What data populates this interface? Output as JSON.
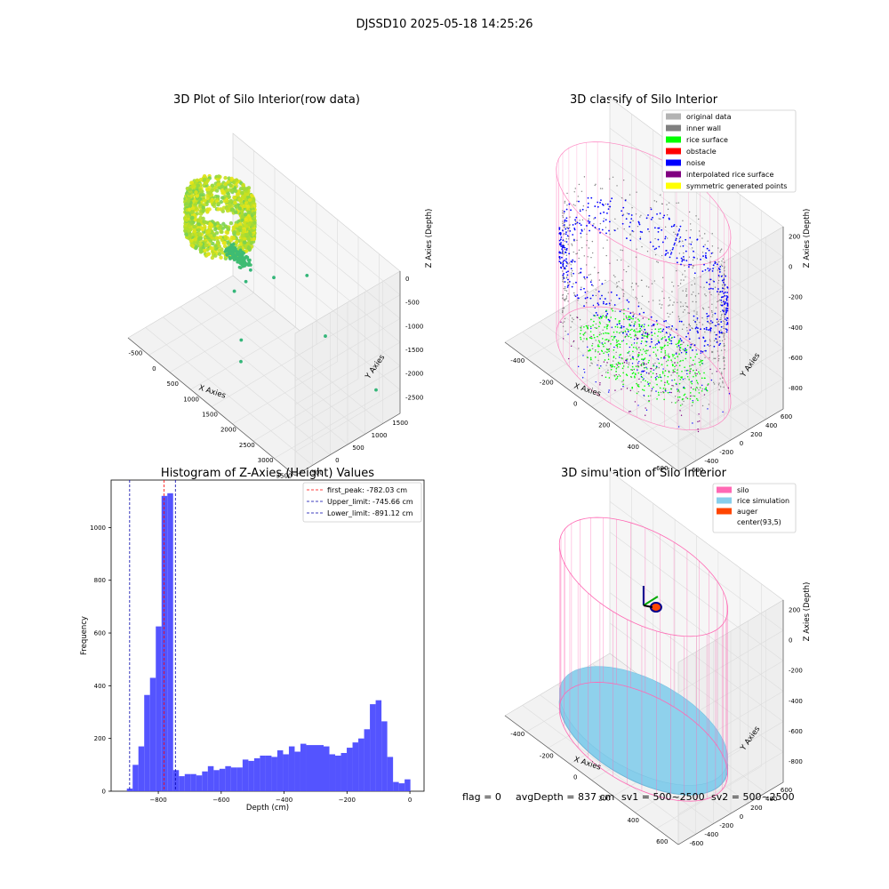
{
  "suptitle": "DJSSD10 2025-05-18 14:25:26",
  "footer": {
    "flag": "flag = 0",
    "avg": "avgDepth = 837 cm",
    "sv1": "sv1 = 500~2500",
    "sv2": "sv2 = 500~2500"
  },
  "colors": {
    "hist_bar": "#4b4bff",
    "first_peak": "#ff0000",
    "limits": "#0000aa",
    "pane": "#f2f2f2",
    "grid": "#dddddd"
  },
  "chart_data": [
    {
      "type": "scatter",
      "projection": "3d",
      "title": "3D Plot of Silo Interior(row data)",
      "xlabel": "X Axies",
      "ylabel": "Y Axies",
      "zlabel": "Z Axies (Depth)",
      "x_ticks": [
        "-500",
        "0",
        "500",
        "1000",
        "1500",
        "2000",
        "2500",
        "3000",
        "3500"
      ],
      "y_ticks": [
        "-500",
        "0",
        "500",
        "1000",
        "1500"
      ],
      "z_ticks": [
        "0",
        "-500",
        "-1000",
        "-1500",
        "-2000",
        "-2500"
      ],
      "xlim": [
        -700,
        3600
      ],
      "ylim": [
        -700,
        1600
      ],
      "zlim": [
        -2700,
        100
      ],
      "colormap": "viridis (green to yellow)",
      "outlier_points": [
        {
          "x": 1280,
          "y": 300,
          "z": -650
        },
        {
          "x": 1620,
          "y": 520,
          "z": -700
        },
        {
          "x": 2050,
          "y": 880,
          "z": -580
        },
        {
          "x": 1120,
          "y": 80,
          "z": -1050
        },
        {
          "x": 1250,
          "y": 120,
          "z": -1950
        },
        {
          "x": 1500,
          "y": -100,
          "z": -2100
        },
        {
          "x": 2500,
          "y": 900,
          "z": -1500
        },
        {
          "x": 3100,
          "y": 1500,
          "z": -2500
        },
        {
          "x": 1300,
          "y": 180,
          "z": -800
        }
      ]
    },
    {
      "type": "scatter",
      "projection": "3d",
      "title": "3D classify of Silo Interior",
      "xlabel": "X Axies",
      "ylabel": "Y Axies",
      "zlabel": "Z Axies (Depth)",
      "x_ticks": [
        "-400",
        "-200",
        "0",
        "200",
        "400",
        "600"
      ],
      "y_ticks": [
        "-600",
        "-400",
        "-200",
        "0",
        "200",
        "400",
        "600"
      ],
      "z_ticks": [
        "200",
        "0",
        "-200",
        "-400",
        "-600",
        "-800"
      ],
      "xlim": [
        -550,
        750
      ],
      "ylim": [
        -650,
        650
      ],
      "zlim": [
        -900,
        250
      ],
      "legend_position": "top-right",
      "legend": [
        {
          "label": "original data",
          "color": "#b3b3b3"
        },
        {
          "label": "inner wall",
          "color": "#808080"
        },
        {
          "label": "rice surface",
          "color": "#00ff00"
        },
        {
          "label": "obstacle",
          "color": "#ff0000"
        },
        {
          "label": "noise",
          "color": "#0000ff"
        },
        {
          "label": "interpolated rice surface",
          "color": "#800080"
        },
        {
          "label": "symmetric generated points",
          "color": "#ffff00"
        }
      ]
    },
    {
      "type": "bar",
      "title": "Histogram of Z-Axies (Height) Values",
      "xlabel": "Depth (cm)",
      "ylabel": "Frequency",
      "xlim": [
        -950,
        45
      ],
      "ylim": [
        0,
        1180
      ],
      "x_ticks": [
        -800,
        -600,
        -400,
        -200,
        0
      ],
      "y_ticks": [
        0,
        200,
        400,
        600,
        800,
        1000
      ],
      "bin_start": -900,
      "bin_width": 18.4,
      "values": [
        10,
        100,
        170,
        365,
        430,
        625,
        1120,
        1130,
        80,
        57,
        65,
        65,
        60,
        75,
        95,
        80,
        85,
        95,
        90,
        90,
        120,
        115,
        125,
        135,
        135,
        130,
        155,
        140,
        170,
        150,
        180,
        175,
        175,
        175,
        170,
        140,
        135,
        145,
        165,
        185,
        200,
        235,
        330,
        345,
        265,
        130,
        35,
        30,
        45
      ],
      "legend_position": "top-right",
      "vlines": [
        {
          "x": -782.03,
          "label": "first_peak: -782.03 cm",
          "color": "#ff0000"
        },
        {
          "x": -745.66,
          "label": "Upper_limit: -745.66 cm",
          "color": "#0000aa"
        },
        {
          "x": -891.12,
          "label": "Lower_limit: -891.12 cm",
          "color": "#0000aa"
        }
      ]
    },
    {
      "type": "scatter",
      "projection": "3d",
      "title": "3D simulation of Silo Interior",
      "xlabel": "X Axies",
      "ylabel": "Y Axies",
      "zlabel": "Z Axies (Depth)",
      "x_ticks": [
        "-400",
        "-200",
        "0",
        "200",
        "400",
        "600"
      ],
      "y_ticks": [
        "-600",
        "-400",
        "-200",
        "0",
        "200",
        "400",
        "600"
      ],
      "z_ticks": [
        "200",
        "0",
        "-200",
        "-400",
        "-600",
        "-800"
      ],
      "xlim": [
        -550,
        750
      ],
      "ylim": [
        -650,
        650
      ],
      "zlim": [
        -900,
        250
      ],
      "legend_position": "top-right",
      "legend": [
        {
          "label": "silo",
          "color": "#ff69b4"
        },
        {
          "label": "rice simulation",
          "color": "#87ceeb"
        },
        {
          "label": "auger",
          "color": "#ff4500"
        },
        {
          "label": "center(93,5)",
          "color": "#ffffff"
        }
      ]
    }
  ]
}
